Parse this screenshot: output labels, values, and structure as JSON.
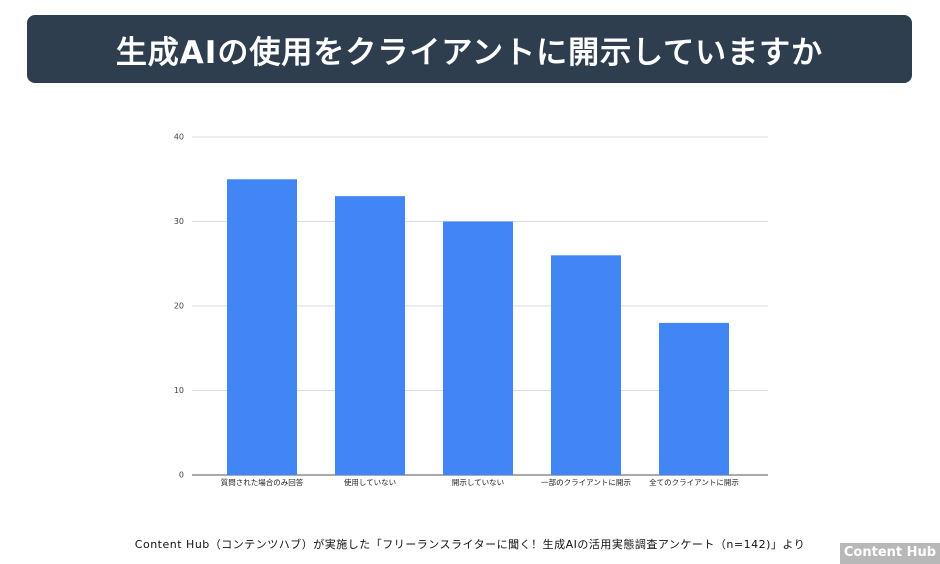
{
  "chart_data": {
    "type": "bar",
    "title": "生成AIの使用をクライアントに開示していますか",
    "categories": [
      "質問された場合のみ回答",
      "使用していない",
      "開示していない",
      "一部のクライアントに開示",
      "全てのクライアントに開示"
    ],
    "values": [
      35,
      33,
      30,
      26,
      18
    ],
    "color": "#4285f4",
    "ylim": [
      0,
      40
    ],
    "yticks": [
      0,
      10,
      20,
      30,
      40
    ],
    "grid": true,
    "source": "Content Hub（コンテンツハブ）が実施した「フリーランスライターに聞く！生成AIの活用実態調査アンケート（n=142)」より",
    "logo": "Content Hub"
  }
}
